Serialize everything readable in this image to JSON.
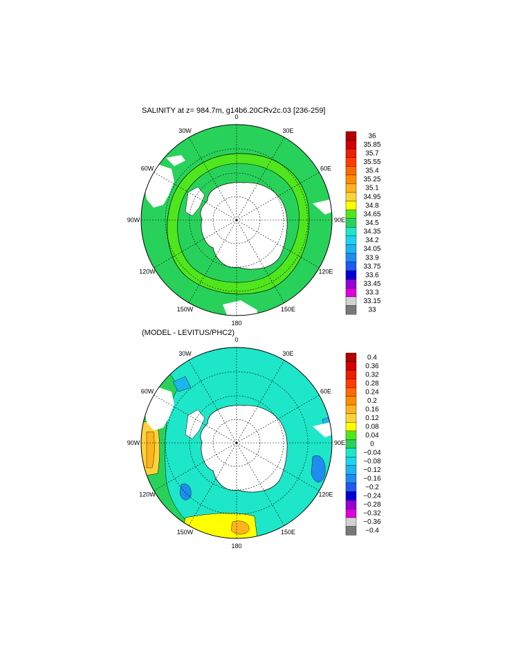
{
  "chart_data": [
    {
      "type": "heatmap",
      "title": "SALINITY at z= 984.7m, g14b6.20CRv2c.03 [236-259]",
      "projection": "south-polar-stereographic",
      "longitude_labels": [
        "0",
        "30E",
        "60E",
        "90E",
        "120E",
        "150E",
        "180",
        "150W",
        "120W",
        "90W",
        "60W",
        "30W"
      ],
      "colorbar": {
        "labels": [
          "36",
          "35.85",
          "35.7",
          "35.55",
          "35.4",
          "35.25",
          "35.1",
          "34.95",
          "34.8",
          "34.65",
          "34.5",
          "34.35",
          "34.2",
          "34.05",
          "33.9",
          "33.75",
          "33.6",
          "33.45",
          "33.3",
          "33.15",
          "33"
        ],
        "colors": [
          "#b40000",
          "#d20000",
          "#ee1e00",
          "#ff3c00",
          "#ff6a00",
          "#ff8c00",
          "#ffb31e",
          "#ffd23c",
          "#ffff00",
          "#50e61e",
          "#28d25a",
          "#1ee6c8",
          "#1ed2f0",
          "#1eb4f0",
          "#1e8cf0",
          "#1e5af0",
          "#0000d2",
          "#9600d2",
          "#dc00dc",
          "#d2d2d2",
          "#787878"
        ]
      },
      "field_levels": {
        "outer": "34.65",
        "band": "34.8",
        "inner": "34.65"
      }
    },
    {
      "type": "heatmap",
      "title": "(MODEL - LEVITUS/PHC2)",
      "projection": "south-polar-stereographic",
      "longitude_labels": [
        "0",
        "30E",
        "60E",
        "90E",
        "120E",
        "150E",
        "180",
        "150W",
        "120W",
        "90W",
        "60W",
        "30W"
      ],
      "colorbar": {
        "labels": [
          "0.4",
          "0.36",
          "0.32",
          "0.28",
          "0.24",
          "0.2",
          "0.16",
          "0.12",
          "0.08",
          "0.04",
          "0",
          "−0.04",
          "−0.08",
          "−0.12",
          "−0.16",
          "−0.2",
          "−0.24",
          "−0.28",
          "−0.32",
          "−0.36",
          "−0.4"
        ],
        "colors": [
          "#b40000",
          "#d20000",
          "#ee1e00",
          "#ff3c00",
          "#ff6a00",
          "#ff8c00",
          "#ffb31e",
          "#ffd23c",
          "#ffff00",
          "#50e61e",
          "#28d25a",
          "#1ee6c8",
          "#1ed2f0",
          "#1eb4f0",
          "#1e8cf0",
          "#1e5af0",
          "#0000d2",
          "#9600d2",
          "#dc00dc",
          "#d2d2d2",
          "#787878"
        ]
      },
      "field_levels": {
        "dominant": "-0.04",
        "patches": [
          "0",
          "0.08",
          "0.16",
          "-0.12",
          "-0.16"
        ]
      }
    }
  ]
}
